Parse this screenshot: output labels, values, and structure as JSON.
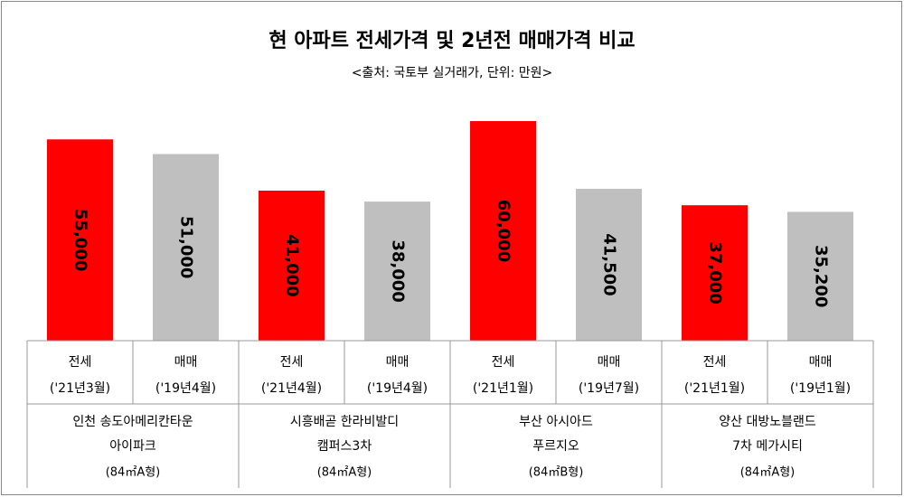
{
  "chart_data": {
    "type": "bar",
    "title": "현 아파트 전세가격 및 2년전 매매가격 비교",
    "subtitle": "<출처: 국토부 실거래가, 단위: 만원>",
    "categories": [
      "전세",
      "매매",
      "전세",
      "매매",
      "전세",
      "매매",
      "전세",
      "매매"
    ],
    "periods": [
      "('21년3월)",
      "('19년4월)",
      "('21년4월)",
      "('19년4월)",
      "('21년1월)",
      "('19년7월)",
      "('21년1월)",
      "('19년1월)"
    ],
    "values": [
      55000,
      51000,
      41000,
      38000,
      60000,
      41500,
      37000,
      35200
    ],
    "value_labels": [
      "55,000",
      "51,000",
      "41,000",
      "38,000",
      "60,000",
      "41,500",
      "37,000",
      "35,200"
    ],
    "colors": [
      "#ff0000",
      "#bfbfbf",
      "#ff0000",
      "#bfbfbf",
      "#ff0000",
      "#bfbfbf",
      "#ff0000",
      "#bfbfbf"
    ],
    "groups": [
      {
        "name": [
          "인천 송도아메리칸타운",
          "아이파크"
        ],
        "size": "(84㎡A형)"
      },
      {
        "name": [
          "시흥배곧 한라비발디",
          "캠퍼스3차"
        ],
        "size": "(84㎡A형)"
      },
      {
        "name": [
          "부산 아시아드",
          "푸르지오"
        ],
        "size": "(84㎡B형)"
      },
      {
        "name": [
          "양산 대방노블랜드",
          "7차 메가시티"
        ],
        "size": "(84㎡A형)"
      }
    ],
    "ylim": [
      0,
      60000
    ]
  }
}
